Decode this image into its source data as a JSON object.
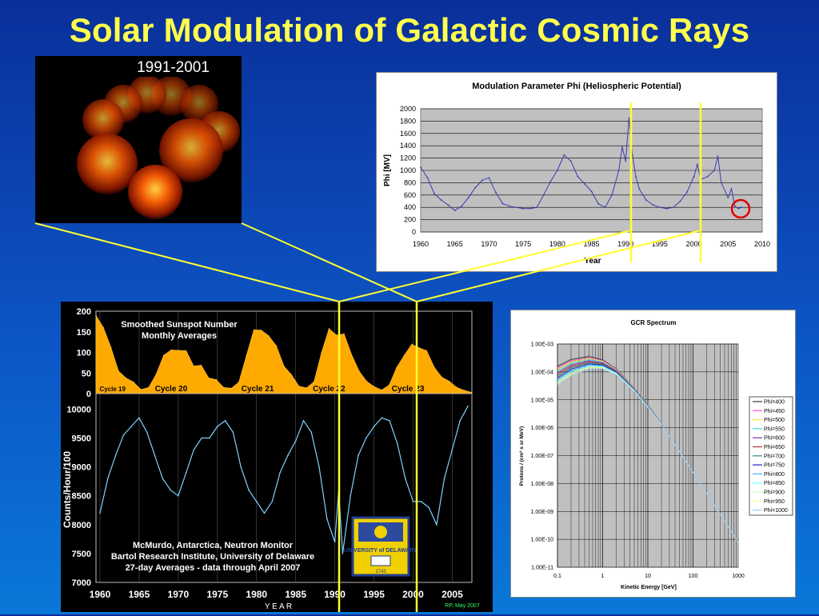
{
  "slide": {
    "title": "Solar Modulation of Galactic Cosmic Rays"
  },
  "sun_image": {
    "label": "1991-2001"
  },
  "colors": {
    "title": "#ffff4d",
    "yellow_lines": "#ffff33",
    "sunspot_fill": "#ffaa00",
    "nm_line": "#7fd0ff",
    "phi_line": "#3b3bb0",
    "circle": "#e00000"
  },
  "chart_data": [
    {
      "type": "line",
      "title": "Modulation Parameter Phi (Heliospheric Potential)",
      "xlabel": "Year",
      "ylabel": "Phi [MV]",
      "xlim": [
        1960,
        2010
      ],
      "ylim": [
        0,
        2000
      ],
      "xticks": [
        "1960",
        "1965",
        "1970",
        "1975",
        "1980",
        "1985",
        "1990",
        "1995",
        "2000",
        "2005",
        "2010"
      ],
      "yticks": [
        "0",
        "200",
        "400",
        "600",
        "800",
        "1000",
        "1200",
        "1400",
        "1600",
        "1800",
        "2000"
      ],
      "grid": true,
      "x": [
        1960,
        1961,
        1962,
        1963,
        1964,
        1965,
        1966,
        1967,
        1968,
        1969,
        1970,
        1971,
        1972,
        1973,
        1974,
        1975,
        1976,
        1977,
        1978,
        1979,
        1980,
        1981,
        1982,
        1983,
        1984,
        1985,
        1986,
        1987,
        1988,
        1989,
        1989.5,
        1990,
        1990.5,
        1991,
        1991.5,
        1992,
        1993,
        1994,
        1995,
        1996,
        1997,
        1998,
        1999,
        2000,
        2000.5,
        2001,
        2002,
        2003,
        2003.5,
        2004,
        2005,
        2005.5,
        2006,
        2006.5,
        2007
      ],
      "values": [
        1050,
        880,
        620,
        520,
        440,
        350,
        420,
        560,
        720,
        840,
        880,
        640,
        460,
        420,
        400,
        380,
        380,
        400,
        600,
        820,
        1000,
        1250,
        1150,
        900,
        780,
        660,
        460,
        400,
        600,
        1000,
        1380,
        1150,
        1850,
        1250,
        900,
        700,
        520,
        440,
        400,
        380,
        400,
        500,
        650,
        900,
        1100,
        850,
        900,
        1000,
        1230,
        800,
        560,
        700,
        420,
        380,
        400
      ]
    },
    {
      "type": "area",
      "title": "Smoothed Sunspot Number\nMonthly Averages",
      "ylim": [
        0,
        200
      ],
      "yticks": [
        "0",
        "50",
        "100",
        "150",
        "200"
      ],
      "xlim": [
        1958,
        2008
      ],
      "cycle_labels": [
        "Cycle 19",
        "Cycle 20",
        "Cycle 21",
        "Cycle 22",
        "Cycle 23"
      ],
      "x": [
        1958,
        1959,
        1960,
        1961,
        1962,
        1963,
        1964,
        1965,
        1966,
        1967,
        1968,
        1969,
        1970,
        1971,
        1972,
        1973,
        1974,
        1975,
        1976,
        1977,
        1978,
        1979,
        1980,
        1981,
        1982,
        1983,
        1984,
        1985,
        1986,
        1987,
        1988,
        1989,
        1990,
        1991,
        1992,
        1993,
        1994,
        1995,
        1996,
        1997,
        1998,
        1999,
        2000,
        2001,
        2002,
        2003,
        2004,
        2005,
        2006,
        2007,
        2008
      ],
      "values": [
        190,
        160,
        112,
        55,
        38,
        28,
        10,
        15,
        47,
        93,
        106,
        105,
        104,
        67,
        69,
        38,
        34,
        15,
        13,
        28,
        92,
        155,
        154,
        140,
        116,
        67,
        46,
        18,
        14,
        29,
        100,
        158,
        142,
        145,
        95,
        55,
        30,
        17,
        9,
        21,
        64,
        93,
        120,
        111,
        104,
        64,
        40,
        30,
        15,
        8,
        3
      ]
    },
    {
      "type": "line",
      "title": "McMurdo, Antarctica, Neutron Monitor\nBartol Research Institute, University of Delaware\n27-day Averages - data through April 2007",
      "xlabel": "Y E A R",
      "ylabel": "Counts/Hour/100",
      "xlim": [
        1960,
        2007
      ],
      "ylim": [
        7000,
        10200
      ],
      "xticks": [
        "1960",
        "1965",
        "1970",
        "1975",
        "1980",
        "1985",
        "1990",
        "1995",
        "2000",
        "2005"
      ],
      "yticks": [
        "7000",
        "7500",
        "8000",
        "8500",
        "9000",
        "9500",
        "10000"
      ],
      "x": [
        1960,
        1961,
        1962,
        1963,
        1964,
        1965,
        1966,
        1967,
        1968,
        1969,
        1970,
        1971,
        1972,
        1973,
        1974,
        1975,
        1976,
        1977,
        1978,
        1979,
        1980,
        1981,
        1982,
        1983,
        1984,
        1985,
        1986,
        1987,
        1988,
        1989,
        1990,
        1990.5,
        1991,
        1992,
        1993,
        1994,
        1995,
        1996,
        1997,
        1998,
        1999,
        2000,
        2001,
        2002,
        2003,
        2004,
        2005,
        2006,
        2007
      ],
      "values": [
        8200,
        8800,
        9200,
        9550,
        9700,
        9850,
        9600,
        9200,
        8800,
        8600,
        8500,
        8900,
        9300,
        9500,
        9500,
        9700,
        9800,
        9600,
        9000,
        8600,
        8400,
        8200,
        8400,
        8900,
        9200,
        9450,
        9800,
        9600,
        9000,
        8100,
        7700,
        8600,
        7500,
        8500,
        9200,
        9500,
        9700,
        9850,
        9800,
        9400,
        8800,
        8400,
        8400,
        8300,
        8000,
        8800,
        9300,
        9800,
        10050
      ]
    },
    {
      "type": "line",
      "title": "GCR Spectrum",
      "xlabel": "Kinetic Energy [GeV]",
      "ylabel": "Protons / (cm² s sr MeV)",
      "xscale": "log",
      "yscale": "log",
      "xticks": [
        "0.1",
        "1",
        "10",
        "100",
        "1000"
      ],
      "yticks": [
        "1.00E-11",
        "1.00E-10",
        "1.00E-09",
        "1.00E-08",
        "1.00E-07",
        "1.00E-06",
        "1.00E-05",
        "1.00E-04",
        "1.00E-03"
      ],
      "legend_position": "right",
      "x": [
        0.1,
        0.2,
        0.5,
        1,
        2,
        5,
        10,
        20,
        50,
        100,
        200,
        500,
        1000
      ],
      "series": [
        {
          "name": "Phi=400",
          "color": "#333333",
          "values": [
            0.00016,
            0.00028,
            0.00036,
            0.00027,
            0.00013,
            2.6e-05,
            6.5e-06,
            1.4e-06,
            1.4e-07,
            2.5e-08,
            4.4e-09,
            4.4e-10,
            7.7e-11
          ]
        },
        {
          "name": "Phi=450",
          "color": "#ff4fd1",
          "values": [
            0.00014,
            0.00025,
            0.00033,
            0.000255,
            0.000125,
            2.55e-05,
            6.4e-06,
            1.4e-06,
            1.4e-07,
            2.5e-08,
            4.4e-09,
            4.4e-10,
            7.7e-11
          ]
        },
        {
          "name": "Phi=500",
          "color": "#e8e23a",
          "values": [
            0.00012,
            0.00022,
            0.0003,
            0.00024,
            0.00012,
            2.5e-05,
            6.3e-06,
            1.4e-06,
            1.4e-07,
            2.5e-08,
            4.4e-09,
            4.4e-10,
            7.7e-11
          ]
        },
        {
          "name": "Phi=550",
          "color": "#44d9e0",
          "values": [
            0.000105,
            0.000195,
            0.000275,
            0.000225,
            0.000115,
            2.45e-05,
            6.2e-06,
            1.4e-06,
            1.4e-07,
            2.5e-08,
            4.4e-09,
            4.4e-10,
            7.7e-11
          ]
        },
        {
          "name": "Phi=600",
          "color": "#8a2aa8",
          "values": [
            9.2e-05,
            0.000175,
            0.00025,
            0.00021,
            0.00011,
            2.4e-05,
            6.1e-06,
            1.38e-06,
            1.4e-07,
            2.5e-08,
            4.4e-09,
            4.4e-10,
            7.7e-11
          ]
        },
        {
          "name": "Phi=650",
          "color": "#b03030",
          "values": [
            8e-05,
            0.000155,
            0.00023,
            0.000195,
            0.000105,
            2.35e-05,
            6e-06,
            1.37e-06,
            1.4e-07,
            2.5e-08,
            4.4e-09,
            4.4e-10,
            7.7e-11
          ]
        },
        {
          "name": "Phi=700",
          "color": "#2a8a8a",
          "values": [
            7e-05,
            0.00014,
            0.00021,
            0.000185,
            0.0001,
            2.3e-05,
            5.9e-06,
            1.36e-06,
            1.4e-07,
            2.5e-08,
            4.4e-09,
            4.4e-10,
            7.7e-11
          ]
        },
        {
          "name": "Phi=750",
          "color": "#1f1fb8",
          "values": [
            6.1e-05,
            0.000125,
            0.000195,
            0.000175,
            9.6e-05,
            2.25e-05,
            5.8e-06,
            1.35e-06,
            1.4e-07,
            2.5e-08,
            4.4e-09,
            4.4e-10,
            7.7e-11
          ]
        },
        {
          "name": "Phi=800",
          "color": "#40b8ff",
          "values": [
            5.4e-05,
            0.000112,
            0.00018,
            0.000165,
            9.2e-05,
            2.2e-05,
            5.7e-06,
            1.34e-06,
            1.4e-07,
            2.5e-08,
            4.4e-09,
            4.4e-10,
            7.7e-11
          ]
        },
        {
          "name": "Phi=850",
          "color": "#66ffff",
          "values": [
            4.8e-05,
            0.0001,
            0.000165,
            0.000155,
            8.8e-05,
            2.15e-05,
            5.6e-06,
            1.33e-06,
            1.4e-07,
            2.5e-08,
            4.4e-09,
            4.4e-10,
            7.7e-11
          ]
        },
        {
          "name": "Phi=900",
          "color": "#ccffcc",
          "values": [
            4.2e-05,
            9e-05,
            0.000152,
            0.000147,
            8.5e-05,
            2.1e-05,
            5.5e-06,
            1.32e-06,
            1.4e-07,
            2.5e-08,
            4.4e-09,
            4.4e-10,
            7.7e-11
          ]
        },
        {
          "name": "Phi=950",
          "color": "#ffff99",
          "values": [
            3.8e-05,
            8.1e-05,
            0.00014,
            0.000139,
            8.2e-05,
            2.05e-05,
            5.4e-06,
            1.31e-06,
            1.4e-07,
            2.5e-08,
            4.4e-09,
            4.4e-10,
            7.7e-11
          ]
        },
        {
          "name": "Phi=1000",
          "color": "#99ccff",
          "values": [
            3.4e-05,
            7.3e-05,
            0.00013,
            0.000132,
            7.9e-05,
            2e-05,
            5.3e-06,
            1.3e-06,
            1.4e-07,
            2.5e-08,
            4.4e-09,
            4.4e-10,
            7.7e-11
          ]
        }
      ]
    }
  ],
  "neutron_monitor": {
    "logo_text": "UNIVERSITY of DELAWARE",
    "logo_year": "1743",
    "credit": "RP, May 2007"
  }
}
